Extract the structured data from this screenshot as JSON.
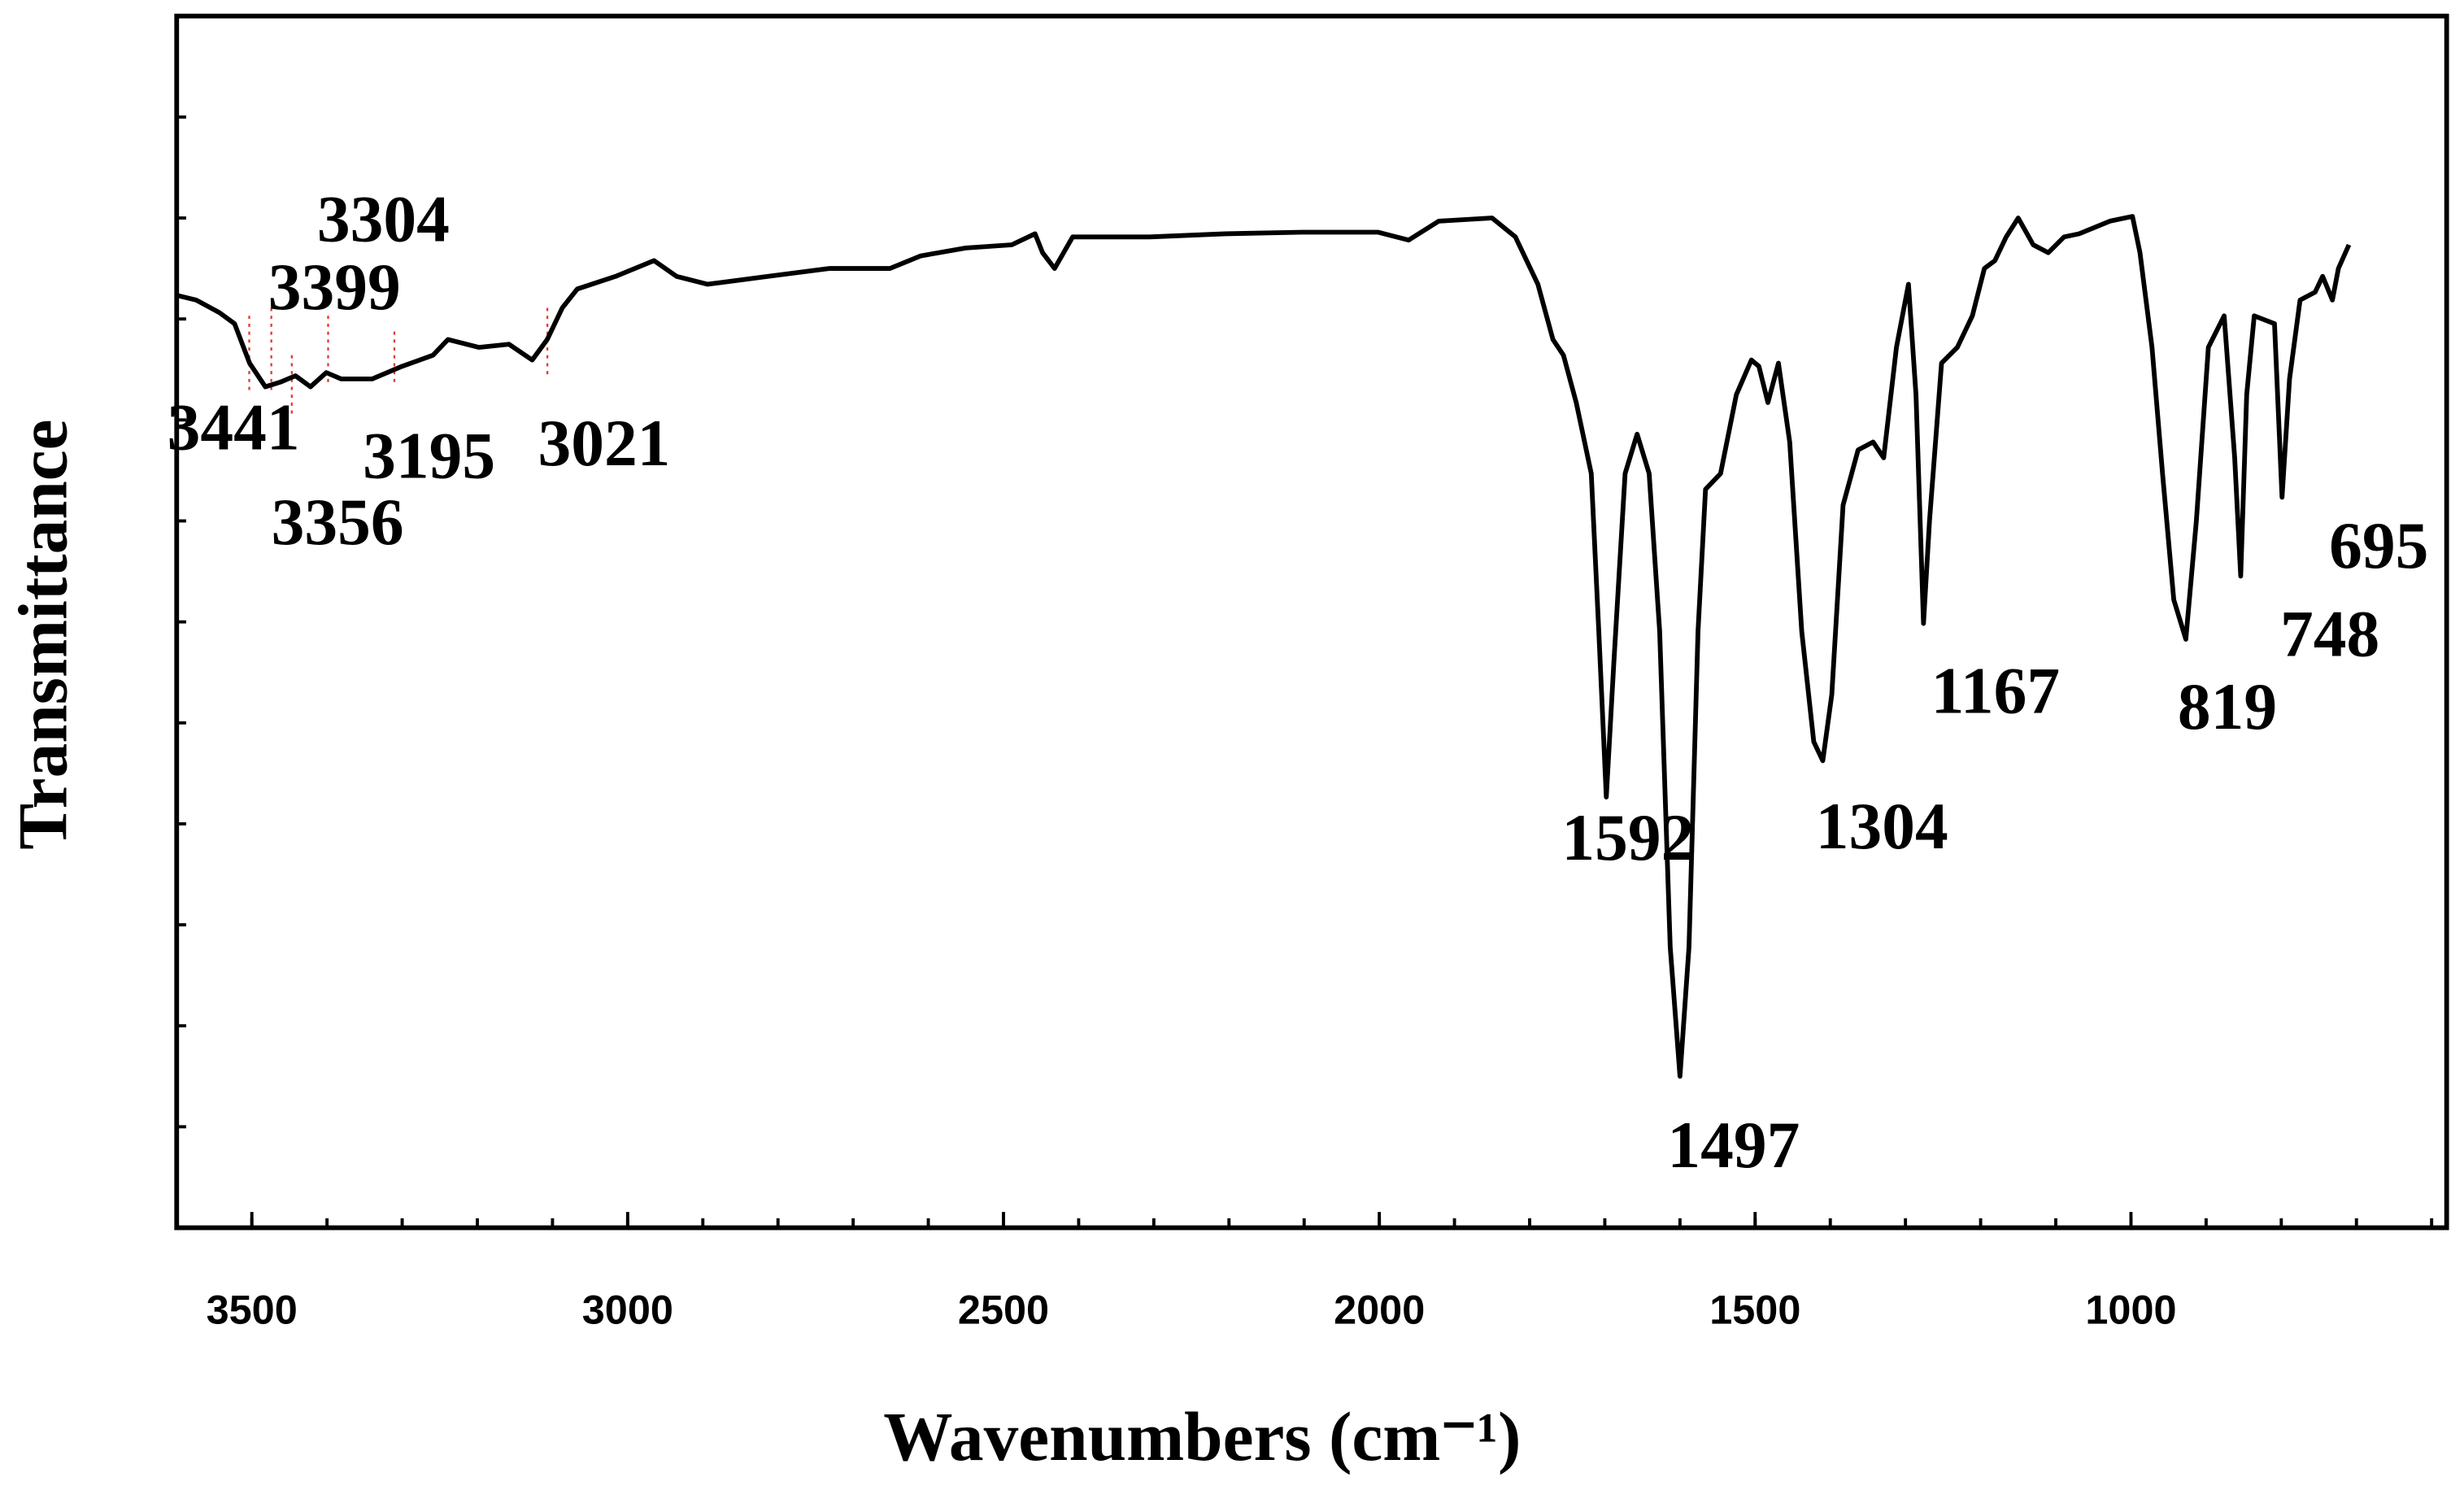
{
  "chart_data": {
    "type": "line",
    "x_label": "Wavenumbers (cm⁻¹)",
    "y_label": "Transmittance",
    "xlim": [
      3600,
      580
    ],
    "xticks": [
      3500,
      3000,
      2500,
      2000,
      1500,
      1000
    ],
    "xminor_ticks": [
      3500,
      3400,
      3300,
      3200,
      3100,
      3000,
      2900,
      2800,
      2700,
      2600,
      2500,
      2400,
      2300,
      2200,
      2100,
      2000,
      1900,
      1800,
      1700,
      1600,
      1500,
      1400,
      1300,
      1200,
      1100,
      1000,
      900,
      800,
      700,
      600
    ],
    "ylim": [
      0,
      768
    ],
    "yticks": [
      0,
      64,
      128,
      192,
      256,
      320,
      384,
      448,
      512,
      576,
      640,
      704,
      768
    ],
    "color": "#000000",
    "x": [
      3600,
      3574,
      3543,
      3523,
      3503,
      3482,
      3462,
      3442,
      3422,
      3401,
      3381,
      3340,
      3300,
      3259,
      3239,
      3198,
      3158,
      3127,
      3107,
      3087,
      3067,
      3016,
      2965,
      2935,
      2894,
      2813,
      2732,
      2651,
      2610,
      2550,
      2489,
      2458,
      2448,
      2432,
      2408,
      2306,
      2205,
      2103,
      2002,
      1961,
      1921,
      1850,
      1819,
      1789,
      1769,
      1755,
      1738,
      1718,
      1708,
      1698,
      1688,
      1673,
      1657,
      1641,
      1627,
      1613,
      1600,
      1588,
      1576,
      1566,
      1546,
      1525,
      1505,
      1495,
      1483,
      1469,
      1454,
      1438,
      1422,
      1410,
      1398,
      1383,
      1363,
      1343,
      1329,
      1312,
      1296,
      1286,
      1276,
      1268,
      1252,
      1231,
      1211,
      1195,
      1181,
      1166,
      1150,
      1130,
      1110,
      1089,
      1069,
      1028,
      998,
      988,
      972,
      958,
      943,
      927,
      913,
      897,
      876,
      862,
      854,
      846,
      836,
      809,
      799,
      789,
      775,
      755,
      745,
      732,
      724,
      710
    ],
    "values": [
      591,
      588,
      580,
      573,
      548,
      533,
      536,
      540,
      533,
      542,
      538,
      538,
      546,
      553,
      563,
      558,
      560,
      550,
      563,
      583,
      595,
      603,
      613,
      603,
      598,
      603,
      608,
      608,
      616,
      621,
      623,
      630,
      618,
      608,
      628,
      628,
      630,
      631,
      631,
      626,
      638,
      640,
      628,
      598,
      563,
      553,
      523,
      478,
      378,
      273,
      358,
      478,
      503,
      478,
      378,
      178,
      96,
      178,
      378,
      468,
      478,
      528,
      550,
      546,
      523,
      548,
      498,
      378,
      308,
      296,
      338,
      458,
      493,
      498,
      488,
      558,
      598,
      528,
      383,
      448,
      548,
      558,
      578,
      608,
      613,
      628,
      640,
      623,
      618,
      628,
      630,
      638,
      641,
      618,
      558,
      478,
      398,
      373,
      448,
      558,
      578,
      488,
      413,
      528,
      578,
      573,
      463,
      538,
      588,
      593,
      603,
      588,
      608,
      623
    ],
    "annotations": [
      "3304",
      "3399",
      "3441",
      "3195",
      "3021",
      "3356",
      "1592",
      "1497",
      "1304",
      "1167",
      "819",
      "748",
      "695"
    ]
  }
}
